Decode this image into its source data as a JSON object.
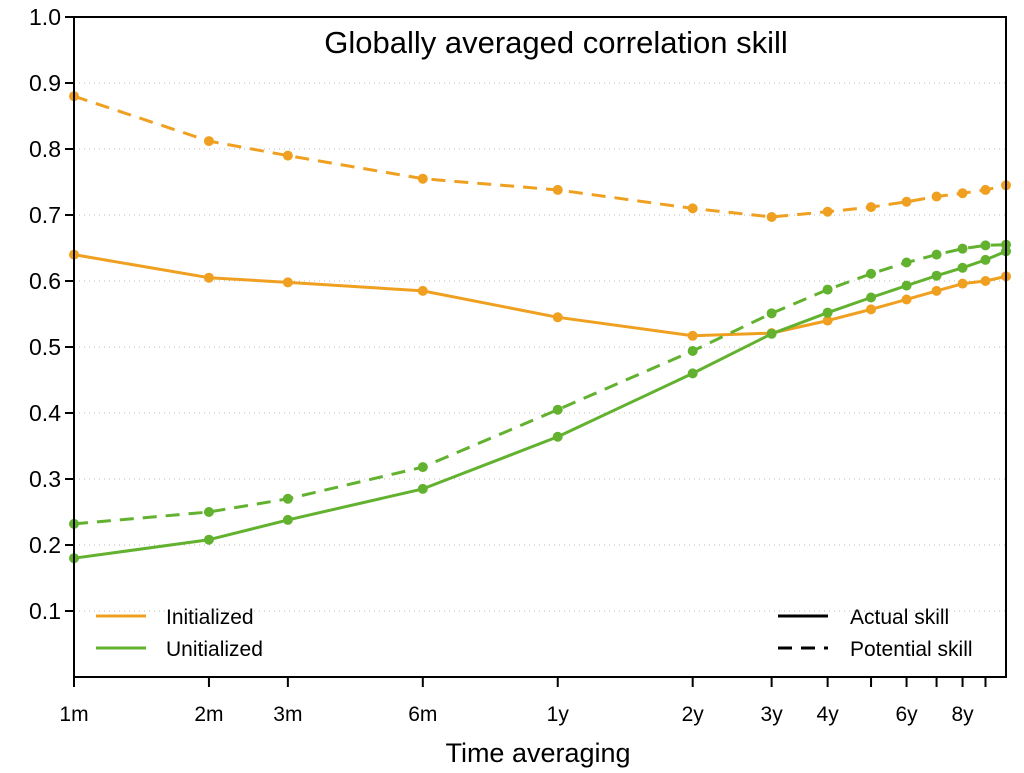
{
  "chart_data": {
    "type": "line",
    "title": "Globally averaged correlation skill",
    "xlabel": "Time averaging",
    "ylabel": "",
    "ylim": [
      0,
      1.0
    ],
    "y_ticks": [
      "0.1",
      "0.2",
      "0.3",
      "0.4",
      "0.5",
      "0.6",
      "0.7",
      "0.8",
      "0.9",
      "1.0"
    ],
    "x_scale": "log",
    "x_unit": "months",
    "xlim": [
      1,
      120
    ],
    "x": [
      1,
      2,
      3,
      6,
      12,
      24,
      36,
      48,
      60,
      72,
      84,
      96,
      108,
      120
    ],
    "x_tick_labels": [
      {
        "value": 1,
        "label": "1m"
      },
      {
        "value": 2,
        "label": "2m"
      },
      {
        "value": 3,
        "label": "3m"
      },
      {
        "value": 6,
        "label": "6m"
      },
      {
        "value": 12,
        "label": "1y"
      },
      {
        "value": 24,
        "label": "2y"
      },
      {
        "value": 36,
        "label": "3y"
      },
      {
        "value": 48,
        "label": "4y"
      },
      {
        "value": 72,
        "label": "6y"
      },
      {
        "value": 96,
        "label": "8y"
      }
    ],
    "x_minor_ticks": [
      60,
      84,
      108
    ],
    "grid": "horizontal dotted",
    "colors": {
      "initialized": "#f0a020",
      "uninitialized": "#62b22f"
    },
    "series": [
      {
        "name": "Initialized",
        "group": "initialized",
        "skill": "actual",
        "style": "solid",
        "values": [
          0.64,
          0.605,
          0.598,
          0.585,
          0.545,
          0.517,
          0.521,
          0.54,
          0.557,
          0.572,
          0.585,
          0.596,
          0.6,
          0.607
        ]
      },
      {
        "name": "Initialized",
        "group": "initialized",
        "skill": "potential",
        "style": "dashed",
        "values": [
          0.88,
          0.812,
          0.79,
          0.755,
          0.738,
          0.71,
          0.697,
          0.705,
          0.712,
          0.72,
          0.728,
          0.733,
          0.738,
          0.745
        ]
      },
      {
        "name": "Unitialized",
        "group": "uninitialized",
        "skill": "actual",
        "style": "solid",
        "values": [
          0.18,
          0.208,
          0.238,
          0.285,
          0.364,
          0.46,
          0.52,
          0.552,
          0.575,
          0.593,
          0.608,
          0.62,
          0.632,
          0.645
        ]
      },
      {
        "name": "Unitialized",
        "group": "uninitialized",
        "skill": "potential",
        "style": "dashed",
        "values": [
          0.232,
          0.25,
          0.27,
          0.318,
          0.405,
          0.494,
          0.551,
          0.587,
          0.611,
          0.628,
          0.64,
          0.649,
          0.654,
          0.655
        ]
      }
    ],
    "legend_color": {
      "placement": "bottom-left",
      "entries": [
        {
          "label": "Initialized",
          "color": "#f0a020"
        },
        {
          "label": "Unitialized",
          "color": "#62b22f"
        }
      ]
    },
    "legend_style": {
      "placement": "bottom-right",
      "entries": [
        {
          "label": "Actual skill",
          "style": "solid"
        },
        {
          "label": "Potential skill",
          "style": "dashed"
        }
      ]
    }
  }
}
